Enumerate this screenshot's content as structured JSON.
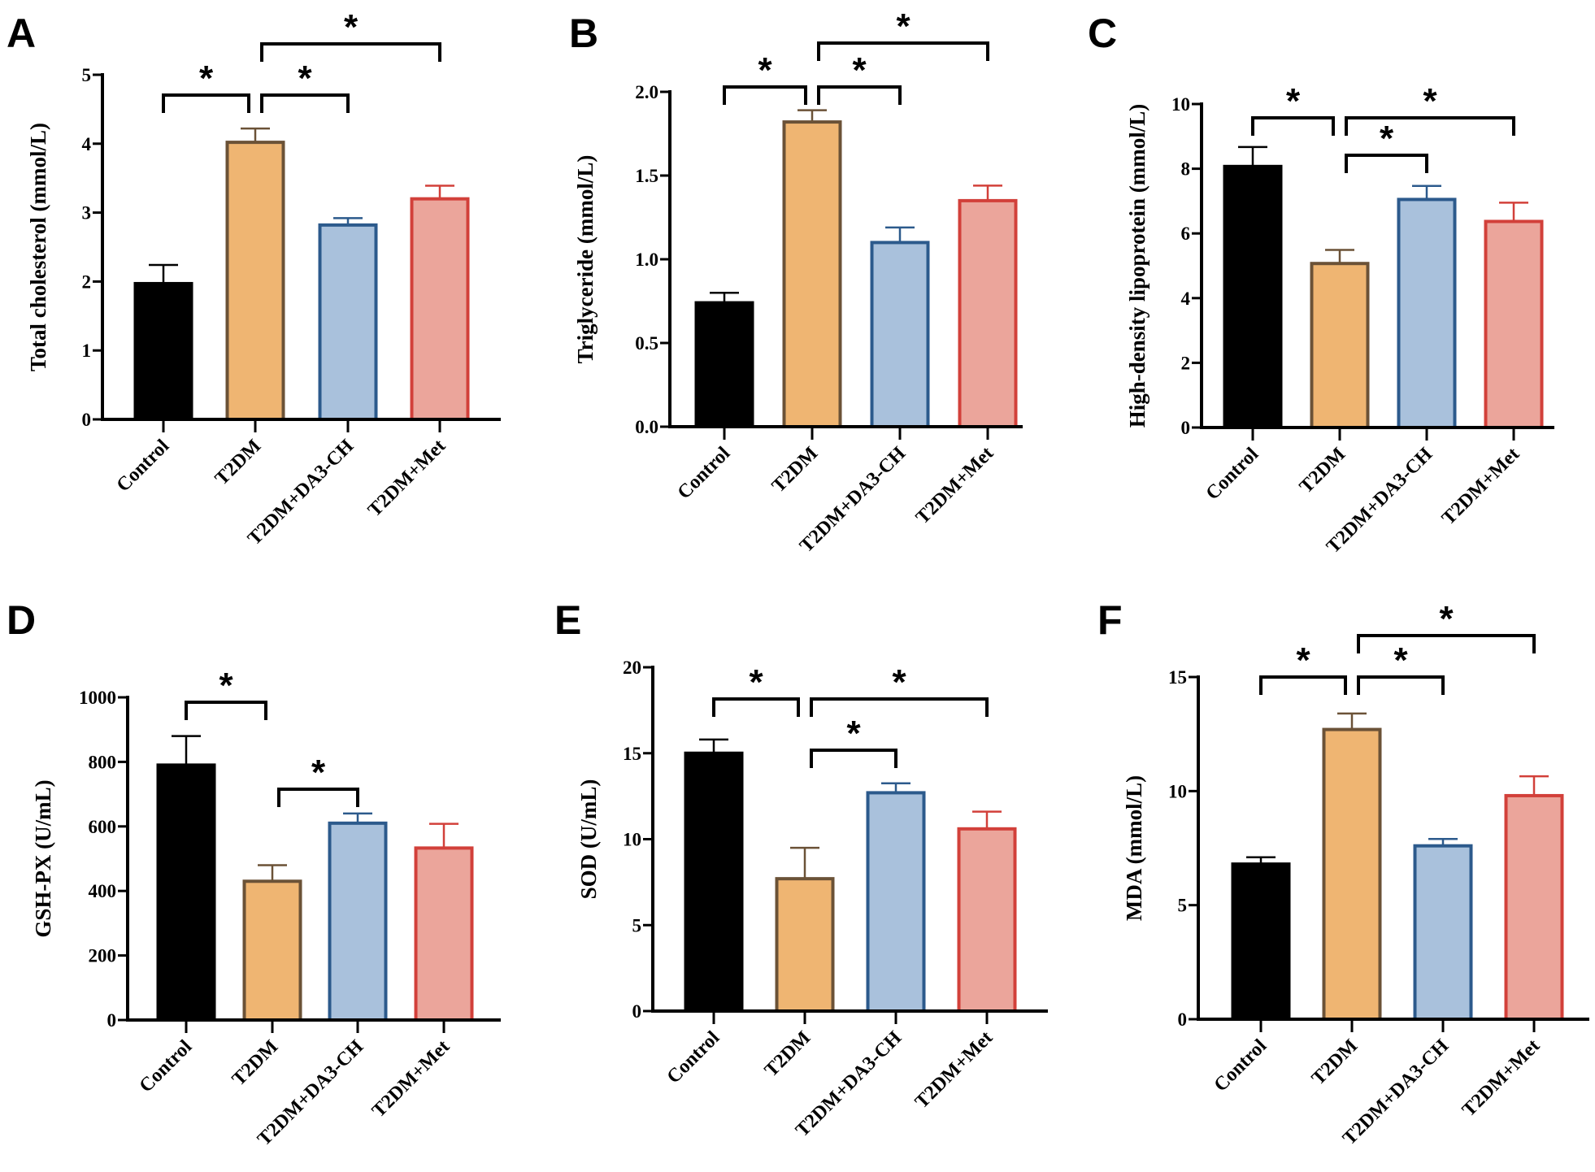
{
  "chart_data": [
    {
      "panel": "A",
      "type": "bar",
      "categories": [
        "Control",
        "T2DM",
        "T2DM+DA3-CH",
        "T2DM+Met"
      ],
      "values": [
        1.97,
        4.02,
        2.82,
        3.2
      ],
      "errors": [
        0.27,
        0.2,
        0.1,
        0.19
      ],
      "ylabel": "Total cholesterol (mmol/L)",
      "ylim": [
        0,
        5
      ],
      "yticks": [
        "0",
        "1",
        "2",
        "3",
        "4",
        "5"
      ],
      "ytick_values": [
        0,
        1,
        2,
        3,
        4,
        5
      ],
      "significance": [
        {
          "from": 0,
          "to": 1,
          "label": "*"
        },
        {
          "from": 1,
          "to": 2,
          "label": "*"
        },
        {
          "from": 1,
          "to": 3,
          "label": "*"
        }
      ]
    },
    {
      "panel": "B",
      "type": "bar",
      "categories": [
        "Control",
        "T2DM",
        "T2DM+DA3-CH",
        "T2DM+Met"
      ],
      "values": [
        0.74,
        1.82,
        1.1,
        1.35
      ],
      "errors": [
        0.06,
        0.07,
        0.09,
        0.09
      ],
      "ylabel": "Triglyceride (mmol/L)",
      "ylim": [
        0,
        2
      ],
      "yticks": [
        "0.0",
        "0.5",
        "1.0",
        "1.5",
        "2.0"
      ],
      "ytick_values": [
        0,
        0.5,
        1,
        1.5,
        2
      ],
      "significance": [
        {
          "from": 0,
          "to": 1,
          "label": "*"
        },
        {
          "from": 1,
          "to": 2,
          "label": "*"
        },
        {
          "from": 1,
          "to": 3,
          "label": "*"
        }
      ]
    },
    {
      "panel": "C",
      "type": "bar",
      "categories": [
        "Control",
        "T2DM",
        "T2DM+DA3-CH",
        "T2DM+Met"
      ],
      "values": [
        8.07,
        5.07,
        7.05,
        6.37
      ],
      "errors": [
        0.6,
        0.42,
        0.42,
        0.58
      ],
      "ylabel": "High-density lipoprotein (mmol/L)",
      "ylim": [
        0,
        10
      ],
      "yticks": [
        "0",
        "2",
        "4",
        "6",
        "8",
        "10"
      ],
      "ytick_values": [
        0,
        2,
        4,
        6,
        8,
        10
      ],
      "significance": [
        {
          "from": 0,
          "to": 1,
          "label": "*"
        },
        {
          "from": 1,
          "to": 3,
          "label": "*"
        },
        {
          "from": 1,
          "to": 2,
          "label": "*"
        }
      ]
    },
    {
      "panel": "D",
      "type": "bar",
      "categories": [
        "Control",
        "T2DM",
        "T2DM+DA3-CH",
        "T2DM+Met"
      ],
      "values": [
        790,
        430,
        610,
        533
      ],
      "errors": [
        90,
        50,
        30,
        75
      ],
      "ylabel": "GSH-PX (U/mL)",
      "ylim": [
        0,
        1000
      ],
      "yticks": [
        "0",
        "200",
        "400",
        "600",
        "800",
        "1000"
      ],
      "ytick_values": [
        0,
        200,
        400,
        600,
        800,
        1000
      ],
      "significance": [
        {
          "from": 0,
          "to": 1,
          "label": "*"
        },
        {
          "from": 1,
          "to": 2,
          "label": "*"
        }
      ]
    },
    {
      "panel": "E",
      "type": "bar",
      "categories": [
        "Control",
        "T2DM",
        "T2DM+DA3-CH",
        "T2DM+Met"
      ],
      "values": [
        15.0,
        7.7,
        12.7,
        10.6
      ],
      "errors": [
        0.8,
        1.8,
        0.55,
        1.0
      ],
      "ylabel": "SOD (U/mL)",
      "ylim": [
        0,
        20
      ],
      "yticks": [
        "0",
        "5",
        "10",
        "15",
        "20"
      ],
      "ytick_values": [
        0,
        5,
        10,
        15,
        20
      ],
      "significance": [
        {
          "from": 0,
          "to": 1,
          "label": "*"
        },
        {
          "from": 1,
          "to": 3,
          "label": "*"
        },
        {
          "from": 1,
          "to": 2,
          "label": "*"
        }
      ]
    },
    {
      "panel": "F",
      "type": "bar",
      "categories": [
        "Control",
        "T2DM",
        "T2DM+DA3-CH",
        "T2DM+Met"
      ],
      "values": [
        6.8,
        12.7,
        7.6,
        9.8
      ],
      "errors": [
        0.3,
        0.7,
        0.3,
        0.85
      ],
      "ylabel": "MDA (mmol/L)",
      "ylim": [
        0,
        15
      ],
      "yticks": [
        "0",
        "5",
        "10",
        "15"
      ],
      "ytick_values": [
        0,
        5,
        10,
        15
      ],
      "significance": [
        {
          "from": 0,
          "to": 1,
          "label": "*"
        },
        {
          "from": 1,
          "to": 2,
          "label": "*"
        },
        {
          "from": 1,
          "to": 3,
          "label": "*"
        }
      ]
    }
  ],
  "colors": {
    "fill": [
      "#000000",
      "#EFB572",
      "#A9C1DC",
      "#EBA59B"
    ],
    "stroke": [
      "#000000",
      "#6B5237",
      "#2C5A8C",
      "#D2403A"
    ]
  }
}
